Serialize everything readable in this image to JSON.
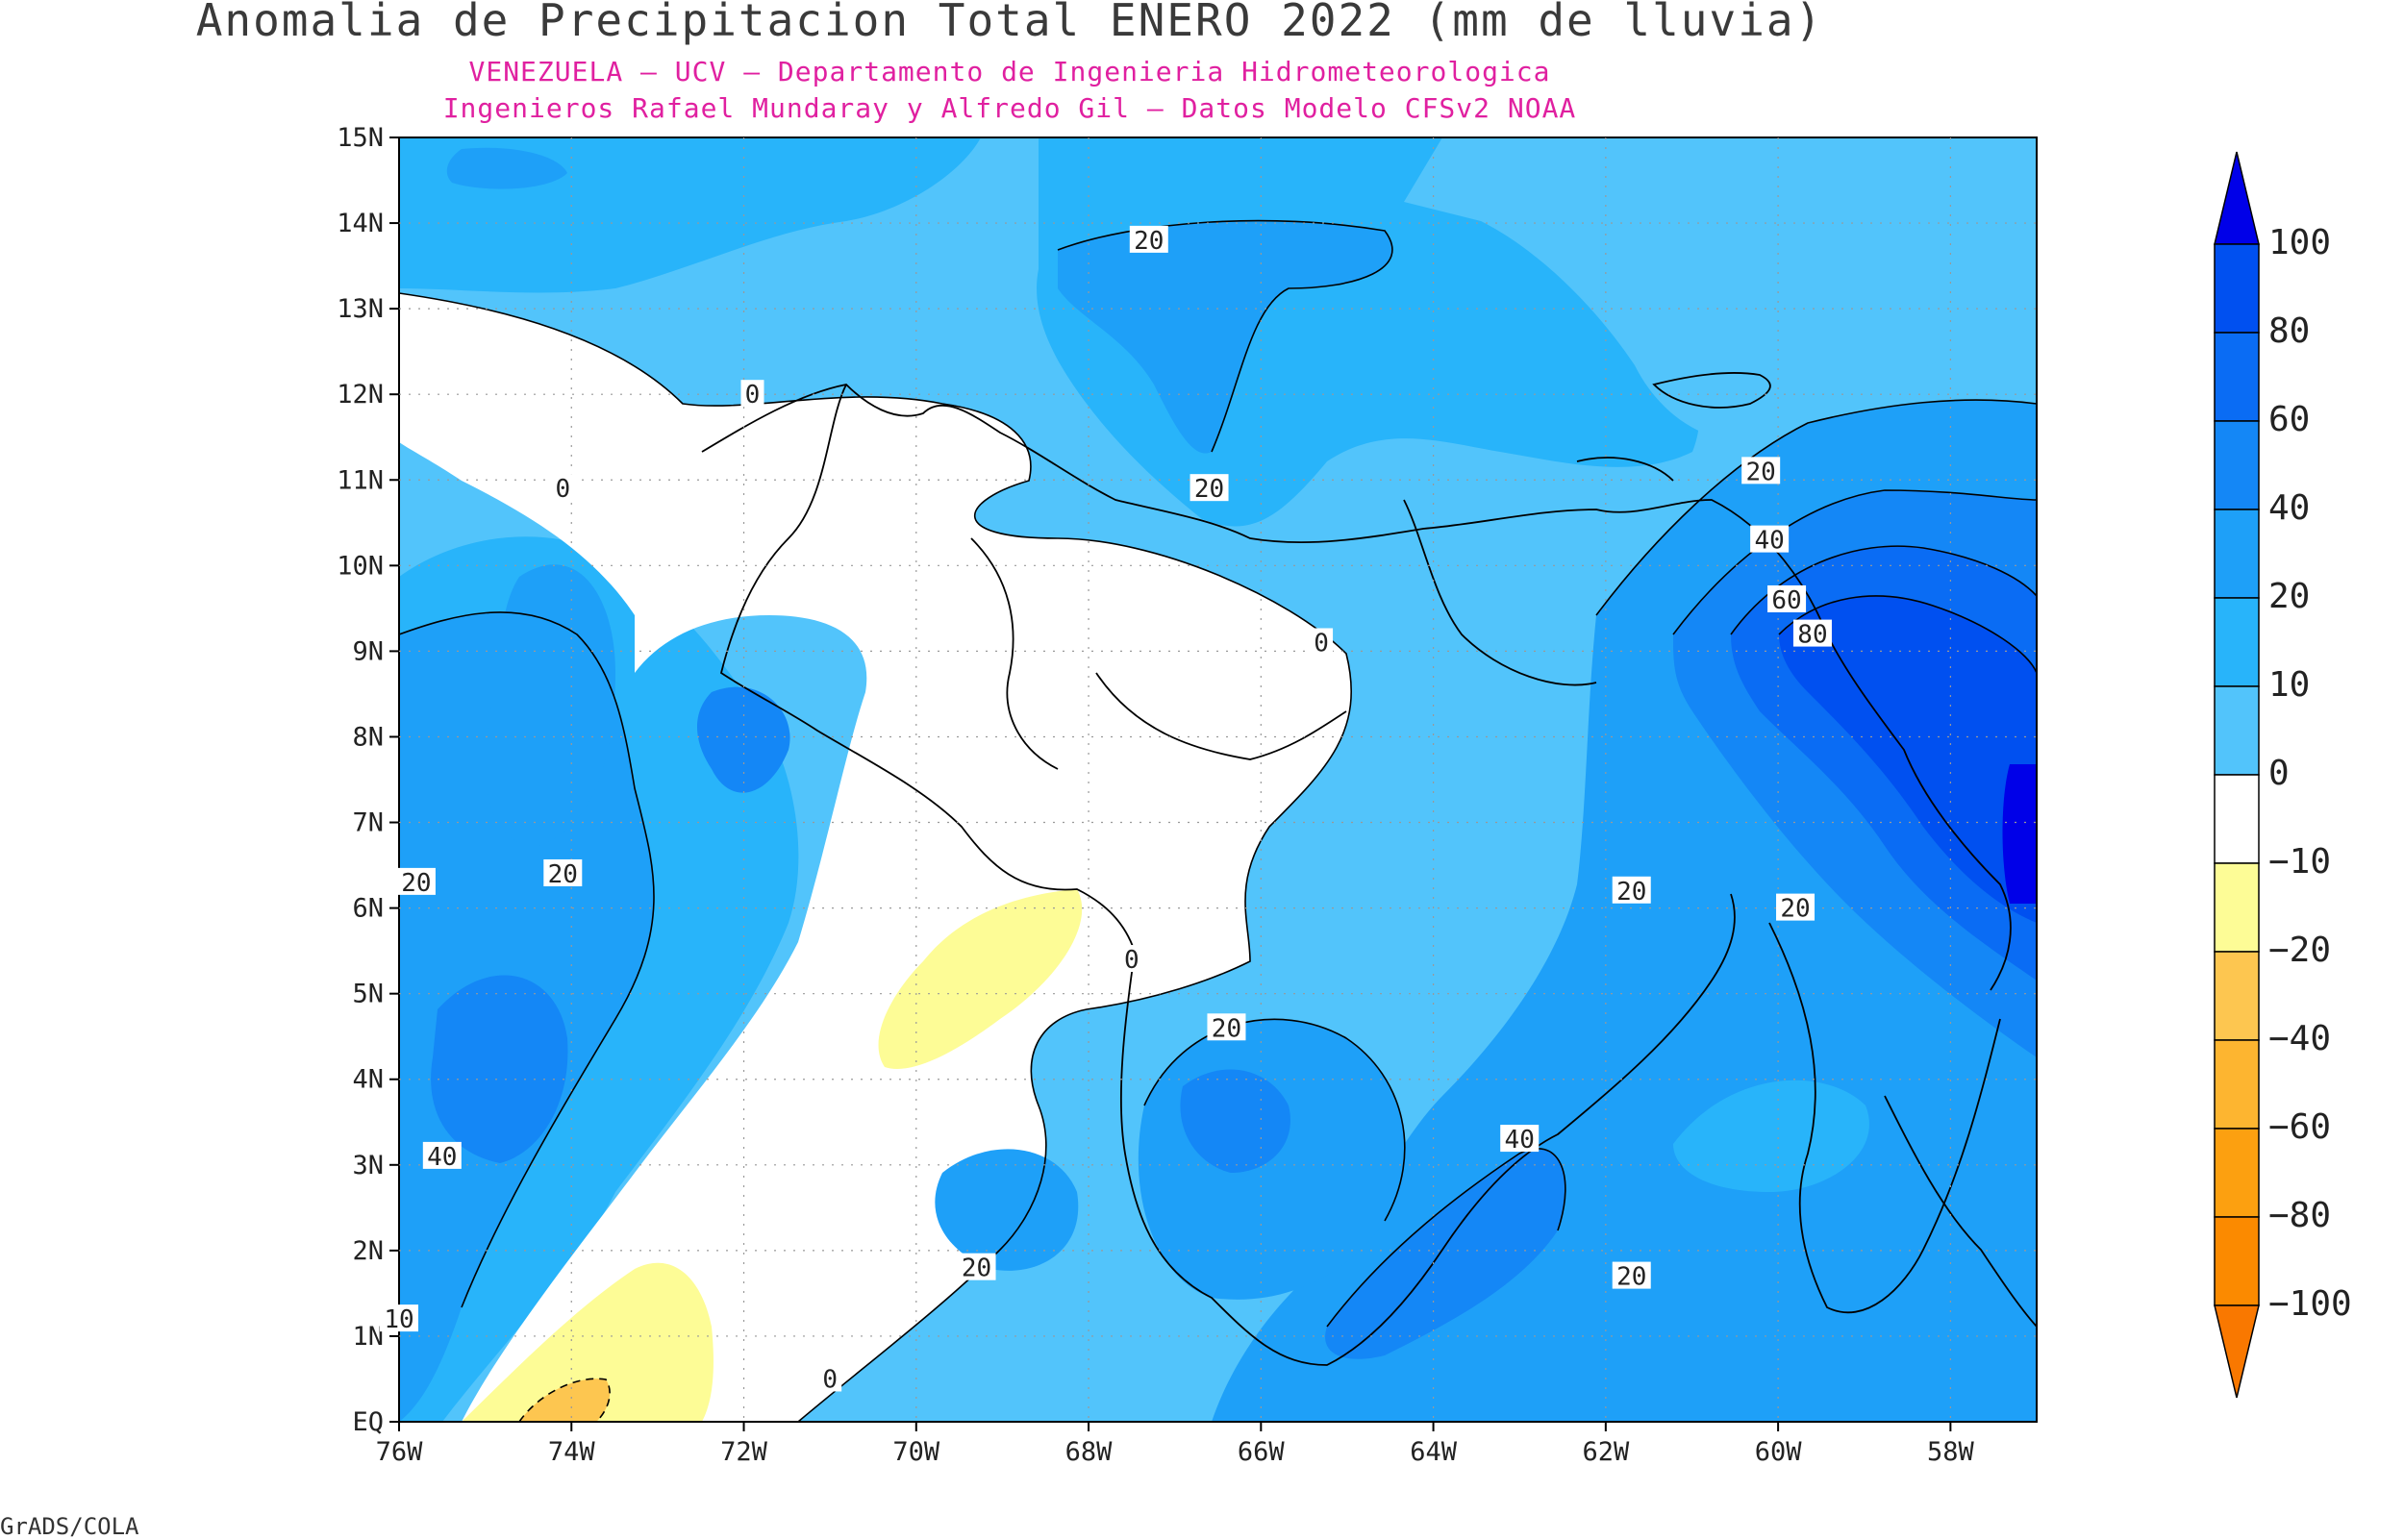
{
  "header": {
    "title": "Anomalia de Precipitacion Total ENERO 2022 (mm de lluvia)",
    "subtitle1": "VENEZUELA – UCV – Departamento de Ingenieria Hidrometeorologica",
    "subtitle2": "Ingenieros Rafael Mundaray y Alfredo Gil – Datos Modelo CFSv2 NOAA"
  },
  "map": {
    "lon_labels": [
      "76W",
      "74W",
      "72W",
      "70W",
      "68W",
      "66W",
      "64W",
      "62W",
      "60W",
      "58W"
    ],
    "lat_labels": [
      "EQ",
      "1N",
      "2N",
      "3N",
      "4N",
      "5N",
      "6N",
      "7N",
      "8N",
      "9N",
      "10N",
      "11N",
      "12N",
      "13N",
      "14N",
      "15N"
    ],
    "contour_labels": [
      {
        "text": "20",
        "lon": -67.3,
        "lat": 13.8
      },
      {
        "text": "20",
        "lon": -66.6,
        "lat": 10.9
      },
      {
        "text": "0",
        "lon": -71.9,
        "lat": 12.0
      },
      {
        "text": "0",
        "lon": -74.1,
        "lat": 10.9
      },
      {
        "text": "0",
        "lon": -65.3,
        "lat": 9.1
      },
      {
        "text": "20",
        "lon": -60.2,
        "lat": 11.1
      },
      {
        "text": "40",
        "lon": -60.1,
        "lat": 10.3
      },
      {
        "text": "60",
        "lon": -59.9,
        "lat": 9.6
      },
      {
        "text": "80",
        "lon": -59.6,
        "lat": 9.2
      },
      {
        "text": "20",
        "lon": -74.1,
        "lat": 6.4
      },
      {
        "text": "20",
        "lon": -75.8,
        "lat": 6.3
      },
      {
        "text": "0",
        "lon": -67.5,
        "lat": 5.4
      },
      {
        "text": "20",
        "lon": -66.4,
        "lat": 4.6
      },
      {
        "text": "20",
        "lon": -61.7,
        "lat": 6.2
      },
      {
        "text": "20",
        "lon": -59.8,
        "lat": 6.0
      },
      {
        "text": "40",
        "lon": -75.5,
        "lat": 3.1
      },
      {
        "text": "40",
        "lon": -63.0,
        "lat": 3.3
      },
      {
        "text": "20",
        "lon": -69.3,
        "lat": 1.8
      },
      {
        "text": "20",
        "lon": -61.7,
        "lat": 1.7
      },
      {
        "text": "10",
        "lon": -76.0,
        "lat": 1.2
      },
      {
        "text": "0",
        "lon": -71.0,
        "lat": 0.5
      }
    ]
  },
  "colorbar": {
    "levels": [
      {
        "label": "100",
        "color": "#0000e8"
      },
      {
        "label": "80",
        "color": "#0050f0"
      },
      {
        "label": "60",
        "color": "#0a6cf4"
      },
      {
        "label": "40",
        "color": "#1487f6"
      },
      {
        "label": "20",
        "color": "#1ea0f8"
      },
      {
        "label": "10",
        "color": "#28b4fa"
      },
      {
        "label": "0",
        "color": "#52c4fb"
      },
      {
        "label": "−10",
        "color": "#ffffff"
      },
      {
        "label": "−20",
        "color": "#fdfc96"
      },
      {
        "label": "−40",
        "color": "#fdc650"
      },
      {
        "label": "−60",
        "color": "#fdb530"
      },
      {
        "label": "−80",
        "color": "#fca010"
      },
      {
        "label": "−100",
        "color": "#fb8a00"
      }
    ],
    "top_color": "#0000e8",
    "bottom_color": "#f97800"
  },
  "footer": "GrADS/COLA"
}
